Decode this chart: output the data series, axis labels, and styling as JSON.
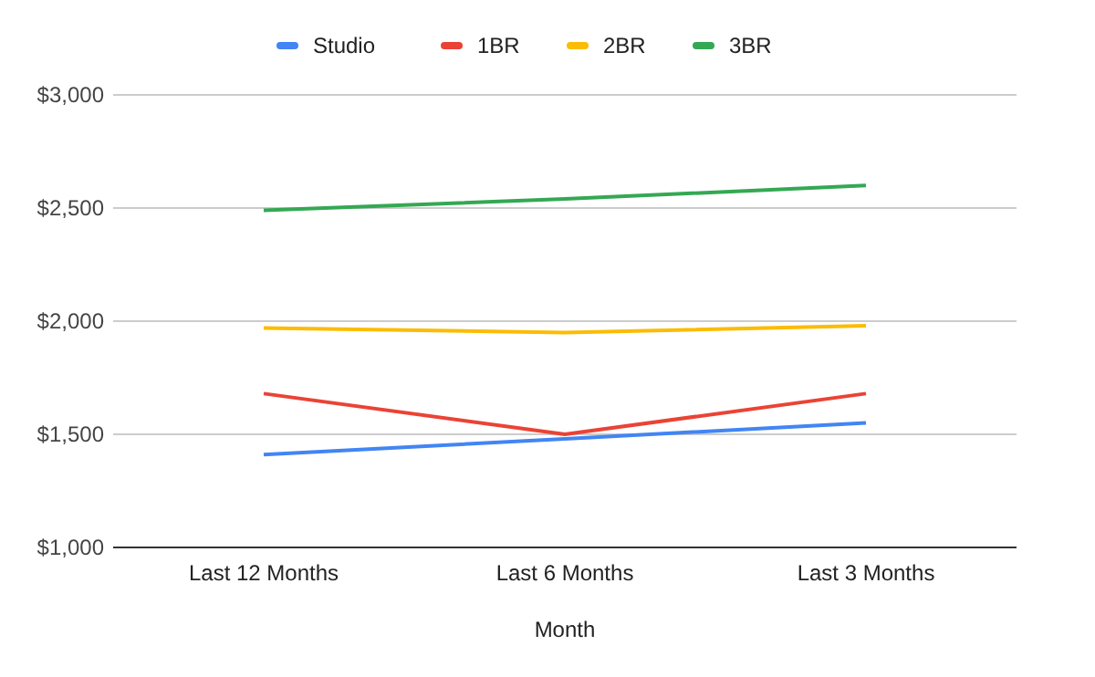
{
  "chart_data": {
    "type": "line",
    "xlabel": "Month",
    "categories": [
      "Last 12 Months",
      "Last 6 Months",
      "Last 3 Months"
    ],
    "series": [
      {
        "name": "Studio",
        "color": "#4285f4",
        "values": [
          1410,
          1480,
          1550
        ]
      },
      {
        "name": "1BR",
        "color": "#ea4335",
        "values": [
          1680,
          1500,
          1680
        ]
      },
      {
        "name": "2BR",
        "color": "#fbbc04",
        "values": [
          1970,
          1950,
          1980
        ]
      },
      {
        "name": "3BR",
        "color": "#34a853",
        "values": [
          2490,
          2540,
          2600
        ]
      }
    ],
    "ylim": [
      1000,
      3000
    ],
    "yticks": [
      {
        "value": 1000,
        "label": "$1,000"
      },
      {
        "value": 1500,
        "label": "$1,500"
      },
      {
        "value": 2000,
        "label": "$2,000"
      },
      {
        "value": 2500,
        "label": "$2,500"
      },
      {
        "value": 3000,
        "label": "$3,000"
      }
    ],
    "grid": "y",
    "legend": "top",
    "marker": "none",
    "line_style": "solid"
  }
}
